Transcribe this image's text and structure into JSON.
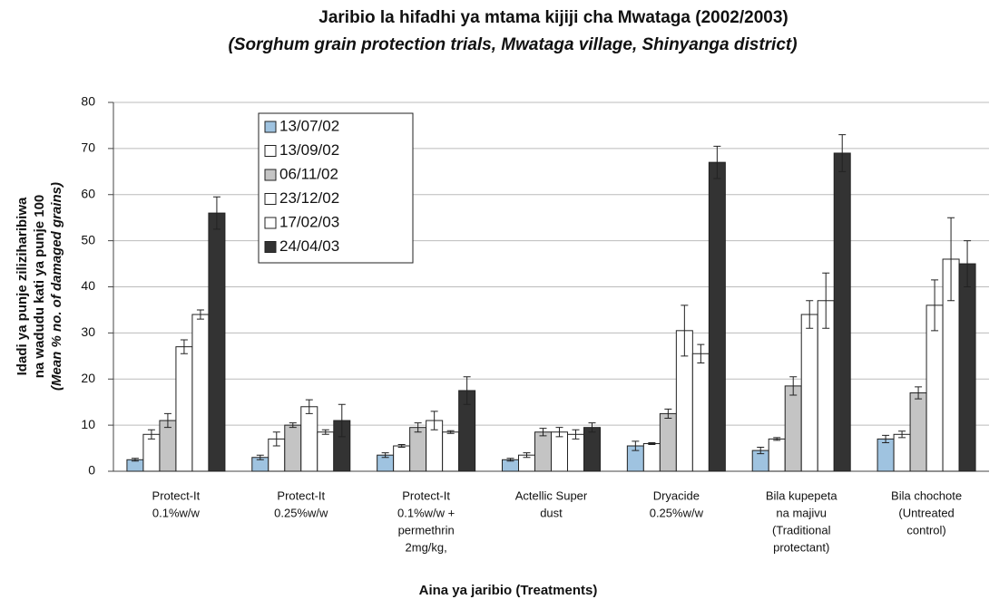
{
  "chart_data": {
    "type": "bar",
    "title": "Jaribio la hifadhi ya mtama kijiji cha Mwataga (2002/2003)",
    "subtitle": "(Sorghum grain protection trials, Mwataga village, Shinyanga district)",
    "y_label": [
      "Idadi ya punje ziliziharibiwa",
      "na wadudu kati ya punje 100",
      "(Mean % no. of damaged grains)"
    ],
    "x_label": "Aina ya jaribio (Treatments)",
    "categories": [
      [
        "Protect-It",
        "0.1%w/w"
      ],
      [
        "Protect-It",
        "0.25%w/w"
      ],
      [
        "Protect-It",
        "0.1%w/w +",
        "permethrin",
        "2mg/kg,"
      ],
      [
        "Actellic Super",
        "dust"
      ],
      [
        "Dryacide",
        "0.25%w/w"
      ],
      [
        "Bila kupepeta",
        "na majivu",
        "(Traditional",
        "protectant)"
      ],
      [
        "Bila chochote",
        "(Untreated",
        "control)"
      ]
    ],
    "series": [
      {
        "name": "13/07/02",
        "color": "#9fc3e0",
        "values": [
          2.5,
          3,
          3.5,
          2.5,
          5.5,
          4.5,
          7
        ],
        "errors": [
          0.3,
          0.5,
          0.5,
          0.3,
          1,
          0.7,
          0.8
        ]
      },
      {
        "name": "13/09/02",
        "color": "#ffffff",
        "values": [
          8,
          7,
          5.5,
          3.5,
          6,
          7,
          8
        ],
        "errors": [
          1,
          1.5,
          0.3,
          0.5,
          0.2,
          0.3,
          0.7
        ]
      },
      {
        "name": "06/11/02",
        "color": "#c4c4c4",
        "values": [
          11,
          10,
          9.5,
          8.5,
          12.5,
          18.5,
          17
        ],
        "errors": [
          1.5,
          0.5,
          1,
          0.8,
          1,
          2,
          1.3
        ]
      },
      {
        "name": "23/12/02",
        "color": "#ffffff",
        "values": [
          27,
          14,
          11,
          8.5,
          30.5,
          34,
          36
        ],
        "errors": [
          1.5,
          1.5,
          2,
          1,
          5.5,
          3,
          5.5
        ]
      },
      {
        "name": "17/02/03",
        "color": "#ffffff",
        "values": [
          34,
          8.5,
          8.5,
          8,
          25.5,
          37,
          46
        ],
        "errors": [
          1,
          0.5,
          0.3,
          1,
          2,
          6,
          9
        ]
      },
      {
        "name": "24/04/03",
        "color": "#333333",
        "values": [
          56,
          11,
          17.5,
          9.5,
          67,
          69,
          45
        ],
        "errors": [
          3.5,
          3.5,
          3,
          1,
          3.5,
          4,
          5
        ]
      }
    ],
    "ylim": [
      0,
      80
    ],
    "yticks": [
      0,
      10,
      20,
      30,
      40,
      50,
      60,
      70,
      80
    ],
    "grid": true
  }
}
